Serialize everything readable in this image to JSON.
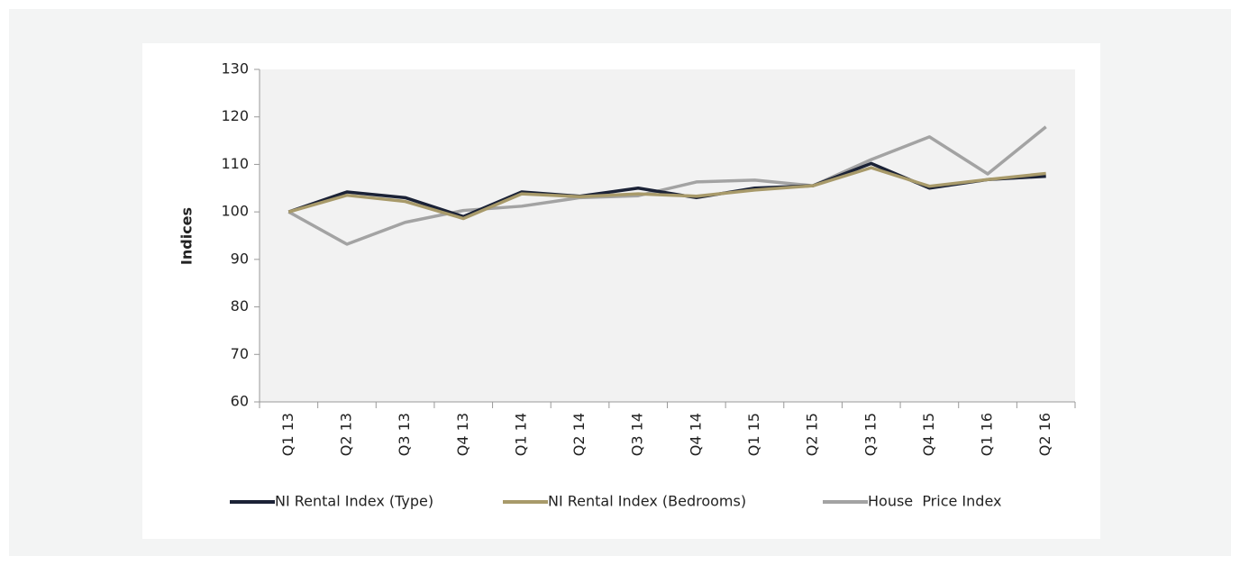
{
  "chart_data": {
    "type": "line",
    "ylabel": "Indices",
    "categories": [
      "Q1 13",
      "Q2 13",
      "Q3 13",
      "Q4 13",
      "Q1 14",
      "Q2 14",
      "Q3 14",
      "Q4 14",
      "Q1 15",
      "Q2 15",
      "Q3 15",
      "Q4 15",
      "Q1 16",
      "Q2 16"
    ],
    "series": [
      {
        "name": "NI Rental Index (Type)",
        "color": "#1b2236",
        "values": [
          100,
          104.2,
          103,
          99,
          104.2,
          103.3,
          105,
          103,
          105,
          105.5,
          110.2,
          105,
          106.8,
          107.5
        ]
      },
      {
        "name": "NI Rental Index (Bedrooms)",
        "color": "#a89a6a",
        "values": [
          100,
          103.5,
          102.2,
          98.6,
          103.8,
          103.2,
          103.8,
          103.3,
          104.6,
          105.5,
          109.3,
          105.4,
          106.8,
          108.1
        ]
      },
      {
        "name": "House  Price Index",
        "color": "#a3a3a3",
        "values": [
          100,
          93.2,
          97.8,
          100.3,
          101.2,
          103,
          103.4,
          106.3,
          106.7,
          105.5,
          111,
          115.8,
          108,
          117.9
        ]
      }
    ],
    "ylim": [
      60,
      130
    ],
    "yticks": [
      60,
      70,
      80,
      90,
      100,
      110,
      120,
      130
    ],
    "legend": "bottom"
  }
}
